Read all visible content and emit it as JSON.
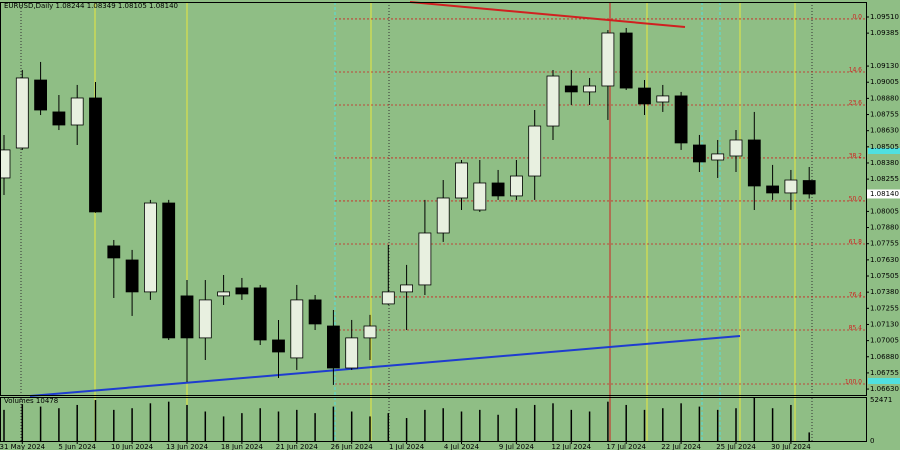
{
  "chart_data": {
    "type": "candlestick",
    "title": "EURUSD,Daily 1.08244 1.08349 1.08105 1.08140",
    "categories": [
      null,
      "31 May 2024",
      null,
      null,
      "5 Jun 2024",
      null,
      null,
      "10 Jun 2024",
      null,
      null,
      "13 Jun 2024",
      null,
      null,
      "18 Jun 2024",
      null,
      null,
      "21 Jun 2024",
      null,
      null,
      "26 Jun 2024",
      null,
      null,
      "1 Jul 2024",
      null,
      null,
      "4 Jul 2024",
      null,
      null,
      "9 Jul 2024",
      null,
      null,
      "12 Jul 2024",
      null,
      null,
      "17 Jul 2024",
      null,
      null,
      "22 Jul 2024",
      null,
      null,
      "25 Jul 2024",
      null,
      null,
      "30 Jul 2024",
      null
    ],
    "open": [
      1.08264,
      1.08496,
      1.09022,
      1.08775,
      1.08674,
      1.08883,
      1.07738,
      1.07629,
      1.07382,
      1.0807,
      1.07351,
      1.07026,
      1.07351,
      1.07413,
      1.07413,
      1.0701,
      1.06871,
      1.0732,
      1.07118,
      1.06793,
      1.07026,
      1.07289,
      1.07382,
      1.07436,
      1.07838,
      1.08109,
      1.08016,
      1.08225,
      1.08125,
      1.08279,
      1.08666,
      1.08976,
      1.0893,
      1.08976,
      1.09386,
      1.0896,
      1.08852,
      1.08899,
      1.08519,
      1.08403,
      1.08434,
      1.08558,
      1.08202,
      1.08148,
      1.08244
    ],
    "high": [
      1.08597,
      1.091,
      1.09162,
      1.08906,
      1.08984,
      1.09007,
      1.07784,
      1.07707,
      1.08094,
      1.08094,
      1.07474,
      1.07474,
      1.07513,
      1.0749,
      1.07436,
      1.07165,
      1.07436,
      1.07358,
      1.07242,
      1.07165,
      1.07204,
      1.07745,
      1.07591,
      1.08094,
      1.08248,
      1.08403,
      1.08403,
      1.08326,
      1.08403,
      1.0879,
      1.091,
      1.091,
      1.09038,
      1.09409,
      1.09425,
      1.09022,
      1.08984,
      1.0893,
      1.08597,
      1.08558,
      1.08635,
      1.08775,
      1.08365,
      1.08326,
      1.08349
    ],
    "low": [
      1.08132,
      1.08481,
      1.08751,
      1.08635,
      1.08519,
      1.07995,
      1.07335,
      1.07196,
      1.0732,
      1.0701,
      1.06685,
      1.06855,
      1.07281,
      1.0732,
      1.06971,
      1.06716,
      1.06778,
      1.07087,
      1.06662,
      1.06778,
      1.06855,
      1.07281,
      1.07087,
      1.07358,
      1.07769,
      1.08016,
      1.08001,
      1.08094,
      1.08094,
      1.08094,
      1.08558,
      1.08829,
      1.08829,
      1.08713,
      1.08945,
      1.08751,
      1.08775,
      1.08481,
      1.0831,
      1.08264,
      1.0831,
      1.08016,
      1.08094,
      1.08016,
      1.08105
    ],
    "close": [
      1.08481,
      1.09038,
      1.0879,
      1.08674,
      1.08883,
      1.08001,
      1.07645,
      1.07382,
      1.0807,
      1.07026,
      1.07026,
      1.0732,
      1.07382,
      1.07366,
      1.0701,
      1.06917,
      1.0732,
      1.07134,
      1.06793,
      1.07026,
      1.07118,
      1.07382,
      1.07436,
      1.07838,
      1.08109,
      1.0838,
      1.08225,
      1.08125,
      1.08279,
      1.08666,
      1.09053,
      1.0893,
      1.08976,
      1.09386,
      1.0896,
      1.08837,
      1.08899,
      1.08535,
      1.08388,
      1.0845,
      1.08558,
      1.08202,
      1.08148,
      1.08248,
      1.0814
    ],
    "up_color": "#e8f0e0",
    "down_color": "#000000",
    "background": "#8fbe85",
    "ylim": [
      1.09626,
      1.06584
    ],
    "yticks": [
      {
        "value": 1.0951,
        "label": "1.09510"
      },
      1.09385,
      {
        "value": 1.0913,
        "label": "1.09130"
      },
      1.09005,
      {
        "value": 1.0888,
        "label": "1.08880"
      },
      1.08755,
      {
        "value": 1.0863,
        "label": "1.08630"
      },
      1.08505,
      {
        "value": 1.0838,
        "label": "1.08380"
      },
      1.08255,
      1.08005,
      {
        "value": 1.0788,
        "label": "1.07880"
      },
      1.07755,
      {
        "value": 1.0763,
        "label": "1.07630"
      },
      1.07505,
      {
        "value": 1.0738,
        "label": "1.07380"
      },
      1.07255,
      {
        "value": 1.0713,
        "label": "1.07130"
      },
      1.07005,
      {
        "value": 1.0688,
        "label": "1.06880"
      },
      1.06755,
      {
        "value": 1.0663,
        "label": "1.06630"
      }
    ],
    "current_price": {
      "value": 1.0814,
      "label": "1.08140"
    },
    "fib_levels": [
      {
        "value": 1.09495,
        "label": "0.0"
      },
      {
        "value": 1.09084,
        "label": "14.6"
      },
      {
        "value": 1.08829,
        "label": "23.6"
      },
      {
        "value": 1.08419,
        "label": "38.2"
      },
      {
        "value": 1.08086,
        "label": "50.0"
      },
      {
        "value": 1.07753,
        "label": "61.8"
      },
      {
        "value": 1.07343,
        "label": "76.4"
      },
      {
        "value": 1.07087,
        "label": "85.4"
      },
      {
        "value": 1.06669,
        "label": "100.0"
      }
    ],
    "fib_color": "#d02020",
    "volume": {
      "title": "Volumes 10478",
      "color": "#000000",
      "values": [
        38000,
        45000,
        42000,
        40000,
        44000,
        50000,
        38000,
        40000,
        46000,
        48000,
        44000,
        36000,
        30000,
        34000,
        40000,
        36000,
        38000,
        34000,
        42000,
        36000,
        30000,
        34000,
        28000,
        38000,
        40000,
        36000,
        38000,
        32000,
        40000,
        44000,
        46000,
        38000,
        36000,
        48000,
        44000,
        38000,
        40000,
        46000,
        42000,
        38000,
        40000,
        52471,
        40000,
        44000,
        10478
      ],
      "ylim": [
        0,
        52471
      ],
      "yticks": [
        52471,
        0
      ]
    }
  }
}
